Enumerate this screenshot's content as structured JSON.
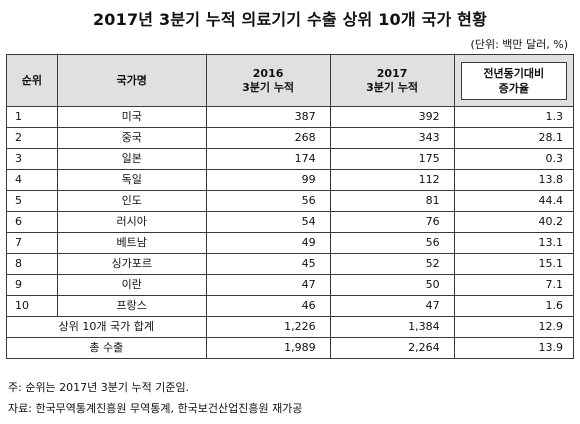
{
  "title": "2017년 3분기 누적 의료기기 수출 상위 10개 국가 현황",
  "unit": "(단위: 백만 달러, %)",
  "headers": {
    "rank": "순위",
    "country": "국가명",
    "y2016_line1": "2016",
    "y2016_line2": "3분기 누적",
    "y2017_line1": "2017",
    "y2017_line2": "3분기 누적",
    "growth_line1": "전년동기대비",
    "growth_line2": "증가율"
  },
  "rows": [
    {
      "rank": "1",
      "country": "미국",
      "v2016": "387",
      "v2017": "392",
      "growth": "1.3"
    },
    {
      "rank": "2",
      "country": "중국",
      "v2016": "268",
      "v2017": "343",
      "growth": "28.1"
    },
    {
      "rank": "3",
      "country": "일본",
      "v2016": "174",
      "v2017": "175",
      "growth": "0.3"
    },
    {
      "rank": "4",
      "country": "독일",
      "v2016": "99",
      "v2017": "112",
      "growth": "13.8"
    },
    {
      "rank": "5",
      "country": "인도",
      "v2016": "56",
      "v2017": "81",
      "growth": "44.4"
    },
    {
      "rank": "6",
      "country": "러시아",
      "v2016": "54",
      "v2017": "76",
      "growth": "40.2"
    },
    {
      "rank": "7",
      "country": "베트남",
      "v2016": "49",
      "v2017": "56",
      "growth": "13.1"
    },
    {
      "rank": "8",
      "country": "싱가포르",
      "v2016": "45",
      "v2017": "52",
      "growth": "15.1"
    },
    {
      "rank": "9",
      "country": "이란",
      "v2016": "47",
      "v2017": "50",
      "growth": "7.1"
    },
    {
      "rank": "10",
      "country": "프랑스",
      "v2016": "46",
      "v2017": "47",
      "growth": "1.6"
    }
  ],
  "summary": [
    {
      "label": "상위 10개 국가 합계",
      "v2016": "1,226",
      "v2017": "1,384",
      "growth": "12.9"
    },
    {
      "label": "총 수출",
      "v2016": "1,989",
      "v2017": "2,264",
      "growth": "13.9"
    }
  ],
  "notes": {
    "note1": "주: 순위는 2017년 3분기 누적 기준임.",
    "note2": "자료: 한국무역통계진흥원 무역통계, 한국보건산업진흥원 재가공"
  }
}
